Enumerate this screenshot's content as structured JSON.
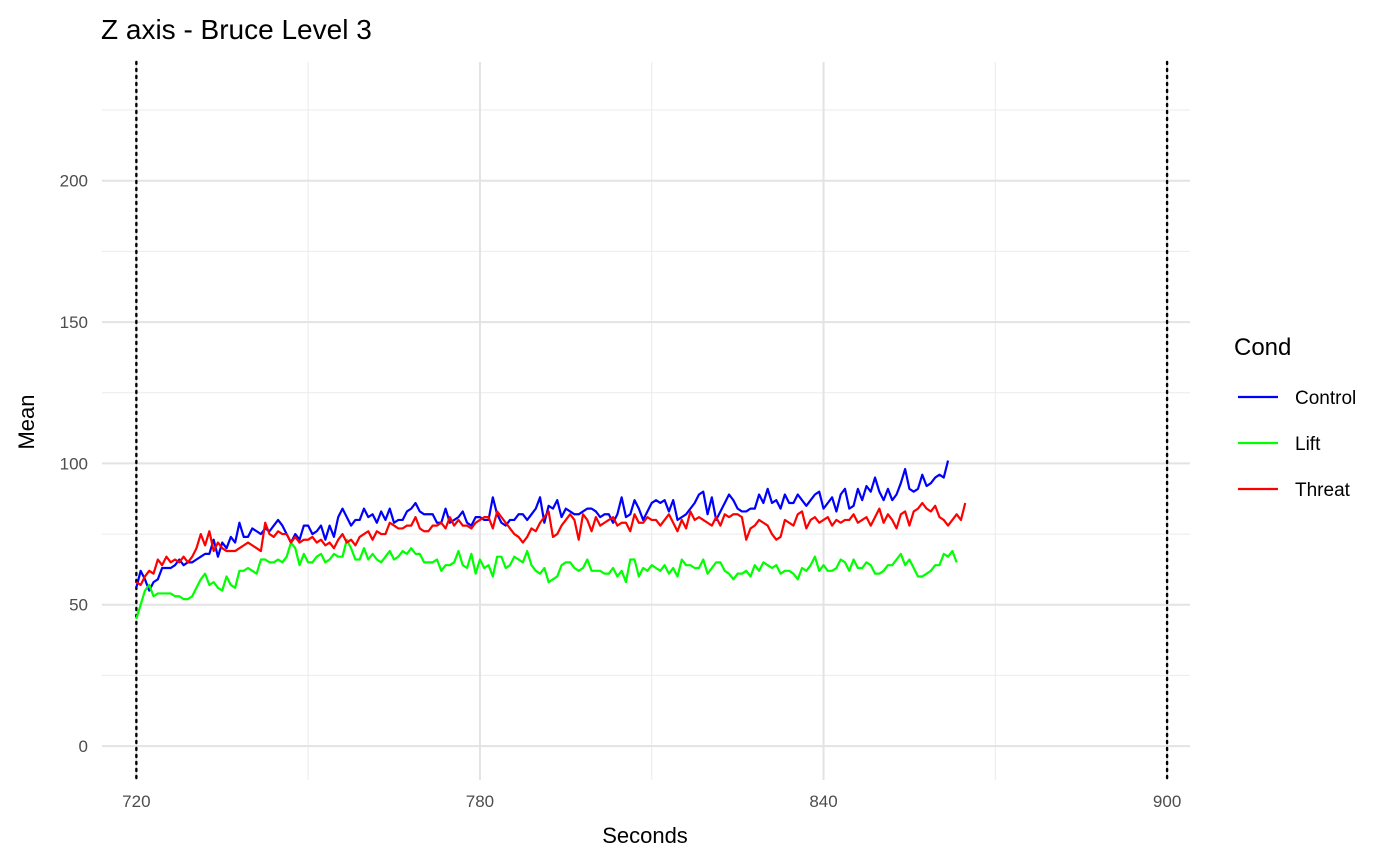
{
  "chart_data": {
    "type": "line",
    "title": "Z axis - Bruce Level 3",
    "xlabel": "Seconds",
    "ylabel": "Mean",
    "xlim": [
      714,
      904
    ],
    "ylim": [
      -12,
      242
    ],
    "x_ticks": [
      720,
      780,
      840,
      900
    ],
    "x_minor_ticks": [
      750,
      810,
      870
    ],
    "y_ticks": [
      0,
      50,
      100,
      150,
      200
    ],
    "y_minor_ticks": [
      25,
      75,
      125,
      175,
      225
    ],
    "vlines": [
      720,
      900
    ],
    "grid": true,
    "legend_title": "Cond",
    "legend_position": "right",
    "x_start": 720,
    "x_step": 0.75,
    "series": [
      {
        "name": "Control",
        "color": "#0000FF",
        "values": [
          56,
          62,
          59,
          55,
          58,
          59,
          63,
          63,
          63,
          64,
          66,
          64,
          65,
          65,
          66,
          67,
          68,
          68,
          73,
          67,
          72,
          70,
          74,
          72,
          79,
          74,
          74,
          77,
          76,
          75,
          77,
          76,
          78,
          80,
          78,
          75,
          72,
          75,
          73,
          78,
          78,
          75,
          76,
          78,
          73,
          78,
          74,
          81,
          84,
          81,
          78,
          80,
          80,
          84,
          81,
          82,
          79,
          83,
          80,
          84,
          79,
          80,
          80,
          83,
          84,
          86,
          83,
          82,
          82,
          82,
          79,
          79,
          84,
          79,
          80,
          81,
          83,
          79,
          78,
          81,
          81,
          80,
          80,
          88,
          82,
          79,
          78,
          80,
          80,
          82,
          82,
          80,
          82,
          84,
          88,
          79,
          85,
          84,
          87,
          81,
          84,
          83,
          82,
          82,
          83,
          84,
          84,
          83,
          81,
          82,
          82,
          79,
          82,
          88,
          81,
          82,
          87,
          84,
          80,
          83,
          86,
          87,
          86,
          87,
          83,
          87,
          80,
          81,
          82,
          84,
          86,
          89,
          90,
          82,
          88,
          80,
          83,
          86,
          89,
          87,
          84,
          83,
          83,
          84,
          84,
          89,
          86,
          91,
          86,
          87,
          84,
          89,
          86,
          86,
          89,
          87,
          85,
          87,
          89,
          90,
          84,
          86,
          88,
          83,
          89,
          91,
          84,
          85,
          91,
          87,
          92,
          90,
          95,
          90,
          87,
          91,
          87,
          89,
          93,
          98,
          91,
          90,
          91,
          96,
          92,
          93,
          95,
          96,
          95,
          101
        ]
      },
      {
        "name": "Lift",
        "color": "#00FF00",
        "values": [
          45,
          50,
          55,
          57,
          53,
          54,
          54,
          54,
          54,
          53,
          53,
          52,
          52,
          53,
          56,
          59,
          61,
          57,
          58,
          56,
          55,
          60,
          57,
          56,
          62,
          62,
          63,
          62,
          61,
          66,
          66,
          65,
          65,
          66,
          65,
          67,
          72,
          70,
          64,
          68,
          65,
          65,
          67,
          68,
          65,
          66,
          68,
          67,
          67,
          73,
          70,
          66,
          66,
          70,
          66,
          68,
          66,
          65,
          67,
          69,
          66,
          67,
          69,
          68,
          70,
          68,
          68,
          65,
          65,
          65,
          66,
          62,
          64,
          64,
          65,
          69,
          64,
          63,
          68,
          61,
          66,
          63,
          64,
          60,
          67,
          67,
          63,
          64,
          67,
          66,
          65,
          69,
          64,
          62,
          61,
          63,
          58,
          59,
          60,
          64,
          65,
          65,
          63,
          62,
          63,
          66,
          62,
          62,
          62,
          61,
          61,
          63,
          60,
          62,
          58,
          66,
          66,
          60,
          63,
          62,
          64,
          63,
          62,
          64,
          61,
          63,
          60,
          66,
          64,
          64,
          63,
          63,
          66,
          61,
          63,
          65,
          65,
          62,
          61,
          59,
          61,
          61,
          62,
          60,
          64,
          62,
          65,
          64,
          63,
          64,
          61,
          62,
          62,
          61,
          59,
          63,
          62,
          64,
          67,
          62,
          64,
          62,
          62,
          63,
          66,
          65,
          62,
          66,
          63,
          63,
          65,
          64,
          61,
          61,
          62,
          64,
          64,
          66,
          68,
          64,
          66,
          63,
          60,
          60,
          61,
          62,
          64,
          64,
          68,
          67,
          69,
          65
        ]
      },
      {
        "name": "Threat",
        "color": "#FF0000",
        "values": [
          58,
          57,
          60,
          62,
          61,
          66,
          64,
          67,
          65,
          66,
          65,
          67,
          65,
          67,
          70,
          75,
          71,
          76,
          69,
          72,
          70,
          69,
          69,
          69,
          70,
          71,
          72,
          71,
          70,
          69,
          79,
          75,
          74,
          76,
          75,
          75,
          72,
          74,
          72,
          73,
          73,
          74,
          72,
          73,
          71,
          72,
          70,
          73,
          75,
          72,
          73,
          71,
          74,
          75,
          76,
          73,
          76,
          75,
          75,
          79,
          78,
          77,
          77,
          78,
          78,
          81,
          77,
          76,
          76,
          78,
          78,
          79,
          77,
          81,
          78,
          80,
          78,
          78,
          77,
          79,
          80,
          81,
          81,
          77,
          83,
          81,
          79,
          77,
          75,
          74,
          72,
          74,
          77,
          76,
          79,
          81,
          83,
          74,
          75,
          78,
          80,
          82,
          80,
          73,
          82,
          80,
          76,
          81,
          78,
          79,
          80,
          81,
          78,
          79,
          79,
          76,
          82,
          79,
          79,
          81,
          80,
          80,
          78,
          80,
          82,
          79,
          76,
          80,
          77,
          83,
          80,
          81,
          80,
          79,
          78,
          81,
          78,
          82,
          81,
          82,
          82,
          81,
          73,
          77,
          78,
          80,
          79,
          78,
          75,
          73,
          74,
          80,
          79,
          78,
          82,
          83,
          77,
          80,
          81,
          79,
          80,
          81,
          78,
          80,
          79,
          80,
          80,
          82,
          79,
          80,
          81,
          78,
          81,
          84,
          79,
          82,
          80,
          77,
          82,
          83,
          78,
          83,
          84,
          86,
          84,
          83,
          85,
          81,
          80,
          78,
          80,
          82,
          80,
          86
        ]
      }
    ]
  }
}
